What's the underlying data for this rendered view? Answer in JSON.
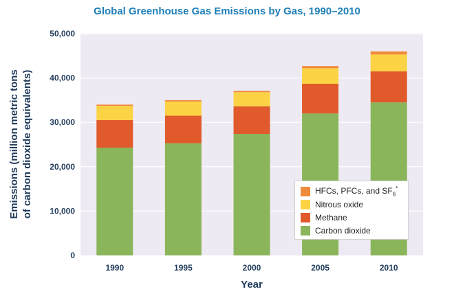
{
  "chart_data": {
    "type": "bar",
    "stacked": true,
    "title": "Global Greenhouse Gas Emissions by Gas, 1990–2010",
    "xlabel": "Year",
    "ylabel_line1": "Emissions (million metric tons",
    "ylabel_line2": "of carbon dioxide equivalents)",
    "ylim": [
      0,
      50000
    ],
    "yticks": [
      0,
      10000,
      20000,
      30000,
      40000,
      50000
    ],
    "ytick_labels": [
      "0",
      "10,000",
      "20,000",
      "30,000",
      "40,000",
      "50,000"
    ],
    "grid": true,
    "legend_position": "bottom-right",
    "categories": [
      "1990",
      "1995",
      "2000",
      "2005",
      "2010"
    ],
    "series": [
      {
        "name": "Carbon dioxide",
        "color": "#8ab55a",
        "values": [
          24300,
          25300,
          27400,
          32000,
          34500
        ]
      },
      {
        "name": "Methane",
        "color": "#e05a2b",
        "values": [
          6200,
          6200,
          6200,
          6700,
          7000
        ]
      },
      {
        "name": "Nitrous oxide",
        "color": "#fcd344",
        "values": [
          3200,
          3200,
          3200,
          3500,
          3800
        ]
      },
      {
        "name": "HFCs, PFCs, and SF",
        "name_sub": "6",
        "name_sup": "*",
        "color": "#f08a3c",
        "values": [
          300,
          300,
          300,
          500,
          700
        ]
      }
    ],
    "plot_background": "#eeeaf3",
    "gridline_color": "#ffffff",
    "title_color": "#1f7fb8",
    "axis_text_color": "#1f3a5a"
  }
}
